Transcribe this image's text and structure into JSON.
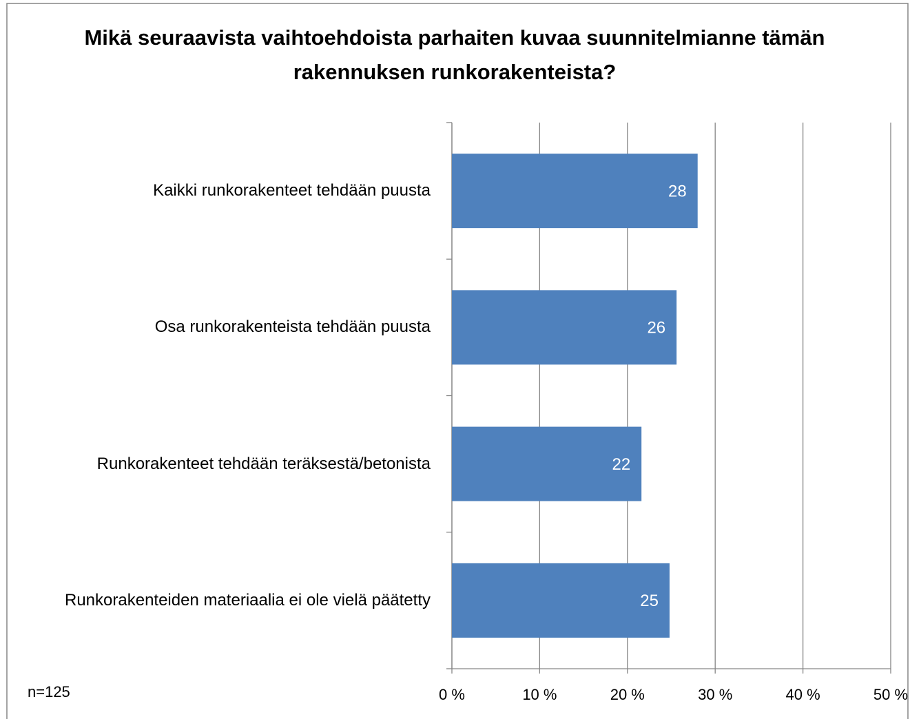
{
  "chart_data": {
    "type": "barh",
    "title": "Mikä seuraavista vaihtoehdoista parhaiten kuvaa suunnitelmianne tämän rakennuksen runkorakenteista?",
    "annotation": "n=125",
    "categories": [
      "Kaikki runkorakenteet tehdään puusta",
      "Osa runkorakenteista tehdään puusta",
      "Runkorakenteet tehdään teräksestä/betonista",
      "Runkorakenteiden materiaalia ei ole vielä päätetty"
    ],
    "values": [
      28,
      25.6,
      21.6,
      24.8
    ],
    "value_labels": [
      "28",
      "26",
      "22",
      "25"
    ],
    "color": "#4f81bd",
    "xlim": [
      0,
      50
    ],
    "xticks": [
      {
        "value": 0,
        "label": "0 %"
      },
      {
        "value": 10,
        "label": "10 %"
      },
      {
        "value": 20,
        "label": "20 %"
      },
      {
        "value": 30,
        "label": "30 %"
      },
      {
        "value": 40,
        "label": "40 %"
      },
      {
        "value": 50,
        "label": "50 %"
      }
    ],
    "grid": true
  }
}
